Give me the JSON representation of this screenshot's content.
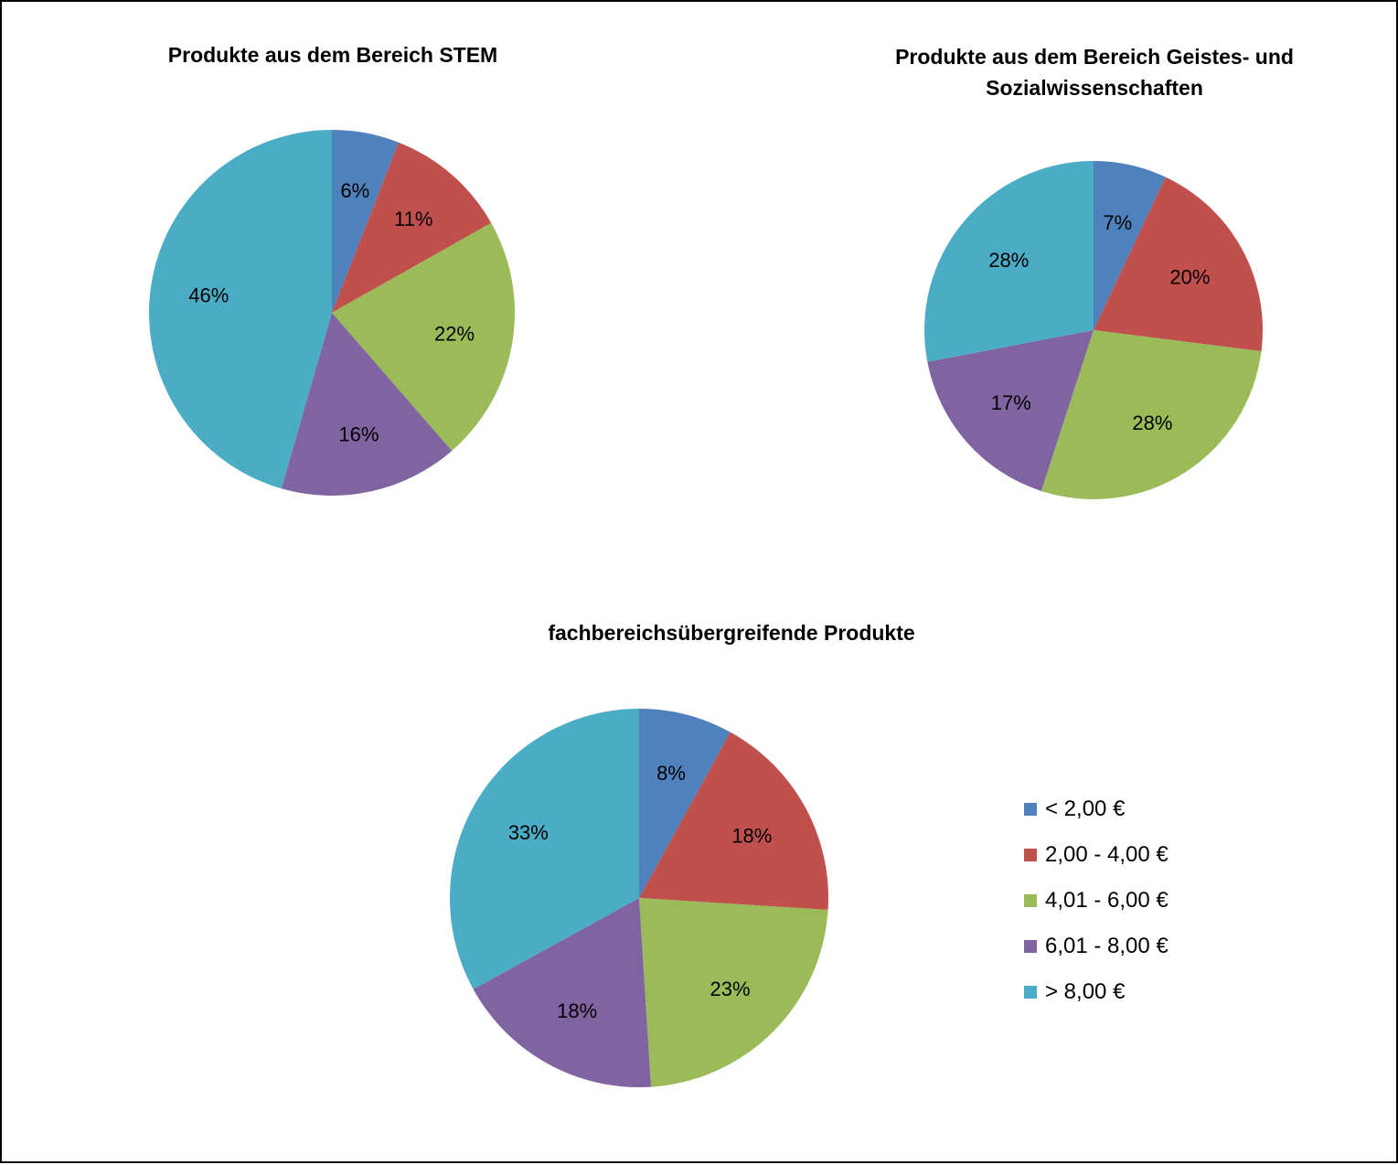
{
  "chart_data": [
    {
      "type": "pie",
      "title": "Produkte aus dem Bereich STEM",
      "categories": [
        "< 2,00 €",
        "2,00 - 4,00 €",
        "4,01 - 6,00 €",
        "6,01 - 8,00 €",
        "> 8,00 €"
      ],
      "values": [
        6,
        11,
        22,
        16,
        46
      ],
      "labels": [
        "6%",
        "11%",
        "22%",
        "16%",
        "46%"
      ]
    },
    {
      "type": "pie",
      "title": "Produkte aus dem Bereich Geistes- und Sozialwissenschaften",
      "categories": [
        "< 2,00 €",
        "2,00 - 4,00 €",
        "4,01 - 6,00 €",
        "6,01 - 8,00 €",
        "> 8,00 €"
      ],
      "values": [
        7,
        20,
        28,
        17,
        28
      ],
      "labels": [
        "7%",
        "20%",
        "28%",
        "17%",
        "28%"
      ]
    },
    {
      "type": "pie",
      "title": "fachbereichsübergreifende Produkte",
      "categories": [
        "< 2,00 €",
        "2,00 - 4,00 €",
        "4,01 - 6,00 €",
        "6,01 - 8,00 €",
        "> 8,00 €"
      ],
      "values": [
        8,
        18,
        23,
        18,
        33
      ],
      "labels": [
        "8%",
        "18%",
        "23%",
        "18%",
        "33%"
      ]
    }
  ],
  "legend": {
    "position": "right",
    "items": [
      {
        "label": "< 2,00 €",
        "color": "#4F81BD"
      },
      {
        "label": "2,00 - 4,00 €",
        "color": "#C0504D"
      },
      {
        "label": "4,01 - 6,00 €",
        "color": "#9BBB59"
      },
      {
        "label": "6,01 - 8,00 €",
        "color": "#8064A2"
      },
      {
        "label": "> 8,00 €",
        "color": "#4BACC6"
      }
    ]
  }
}
